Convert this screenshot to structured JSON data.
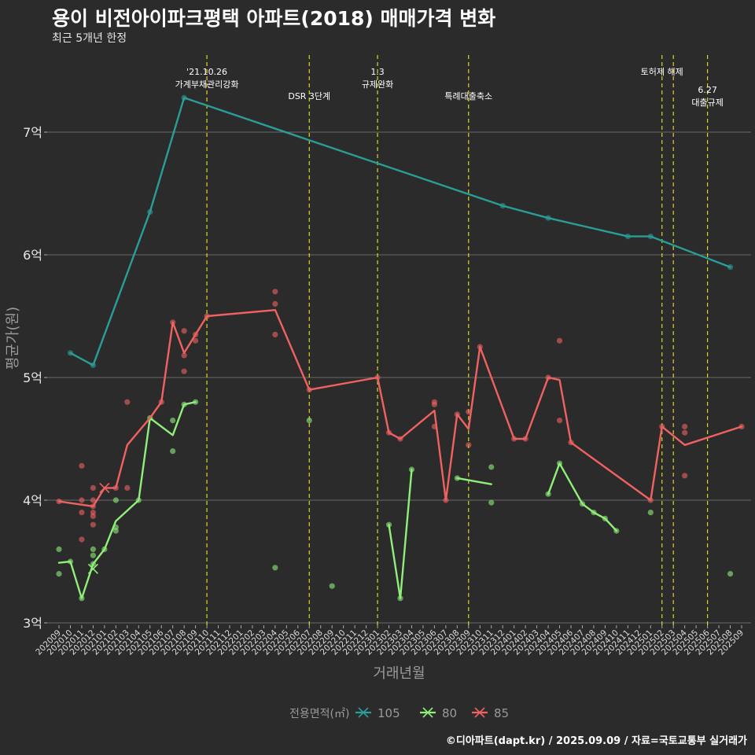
{
  "title": "용이 비전아이파크평택 아파트(2018) 매매가격 변화",
  "subtitle": "최근 5개년 한정",
  "caption": "©디아파트(dapt.kr) / 2025.09.09 / 자료=국토교통부 실거래가",
  "chart_data": {
    "type": "line",
    "xlabel": "거래년월",
    "ylabel": "평균가(원)",
    "ylim": [
      3.0,
      7.85
    ],
    "y_ticks": [
      3,
      4,
      5,
      6,
      7
    ],
    "y_tick_labels": [
      "3억",
      "4억",
      "5억",
      "6억",
      "7억"
    ],
    "grid": true,
    "x_ticks": [
      "202009",
      "202010",
      "202011",
      "202012",
      "202101",
      "202102",
      "202103",
      "202104",
      "202105",
      "202106",
      "202107",
      "202108",
      "202109",
      "202110",
      "202111",
      "202112",
      "202201",
      "202202",
      "202203",
      "202204",
      "202205",
      "202206",
      "202207",
      "202208",
      "202209",
      "202210",
      "202211",
      "202212",
      "202301",
      "202302",
      "202303",
      "202304",
      "202305",
      "202306",
      "202307",
      "202308",
      "202309",
      "202310",
      "202311",
      "202312",
      "202401",
      "202402",
      "202403",
      "202404",
      "202405",
      "202406",
      "202407",
      "202408",
      "202409",
      "202410",
      "202411",
      "202412",
      "202501",
      "202502",
      "202503",
      "202504",
      "202505",
      "202506",
      "202507",
      "202508",
      "202509"
    ],
    "legend": {
      "title": "전용면적(㎡)",
      "position": "bottom"
    },
    "colors": {
      "105": "#2a9d96",
      "80": "#90ee7a",
      "85": "#f06262"
    },
    "series": [
      {
        "name": "105",
        "line": [
          [
            1,
            5.2
          ],
          [
            3,
            5.1
          ],
          [
            8,
            6.35
          ],
          [
            11,
            7.28
          ],
          [
            39,
            6.4
          ],
          [
            43,
            6.3
          ],
          [
            50,
            6.15
          ],
          [
            52,
            6.15
          ],
          [
            59,
            5.9
          ]
        ],
        "points": [
          [
            1,
            5.2
          ],
          [
            3,
            5.1
          ],
          [
            8,
            6.35
          ],
          [
            11,
            7.28
          ],
          [
            39,
            6.4
          ],
          [
            43,
            6.3
          ],
          [
            50,
            6.15
          ],
          [
            52,
            6.15
          ],
          [
            59,
            5.9
          ]
        ],
        "crosses": []
      },
      {
        "name": "80",
        "segments": [
          [
            [
              0,
              3.49
            ],
            [
              1,
              3.5
            ],
            [
              2,
              3.2
            ],
            [
              3,
              3.48
            ],
            [
              4,
              3.6
            ],
            [
              5,
              3.83
            ],
            [
              7,
              4.0
            ],
            [
              8,
              4.67
            ],
            [
              10,
              4.53
            ],
            [
              11,
              4.78
            ],
            [
              12,
              4.8
            ]
          ],
          [
            [
              29,
              3.8
            ],
            [
              30,
              3.2
            ],
            [
              31,
              4.25
            ]
          ],
          [
            [
              35,
              4.18
            ],
            [
              38,
              4.13
            ]
          ],
          [
            [
              43,
              4.05
            ],
            [
              44,
              4.3
            ],
            [
              46,
              3.97
            ],
            [
              47,
              3.9
            ],
            [
              48,
              3.85
            ],
            [
              49,
              3.75
            ]
          ]
        ],
        "points": [
          [
            0,
            3.6
          ],
          [
            0,
            3.4
          ],
          [
            1,
            3.5
          ],
          [
            2,
            3.2
          ],
          [
            3,
            3.6
          ],
          [
            3,
            3.55
          ],
          [
            3,
            3.48
          ],
          [
            4,
            3.6
          ],
          [
            5,
            4.0
          ],
          [
            5,
            3.78
          ],
          [
            5,
            3.75
          ],
          [
            7,
            4.0
          ],
          [
            8,
            4.67
          ],
          [
            10,
            4.65
          ],
          [
            10,
            4.4
          ],
          [
            11,
            4.78
          ],
          [
            12,
            4.8
          ],
          [
            19,
            3.45
          ],
          [
            22,
            4.65
          ],
          [
            24,
            3.3
          ],
          [
            29,
            3.8
          ],
          [
            30,
            3.2
          ],
          [
            31,
            4.25
          ],
          [
            35,
            4.18
          ],
          [
            38,
            4.27
          ],
          [
            38,
            3.98
          ],
          [
            43,
            4.05
          ],
          [
            44,
            4.3
          ],
          [
            46,
            3.97
          ],
          [
            47,
            3.9
          ],
          [
            48,
            3.85
          ],
          [
            49,
            3.75
          ],
          [
            52,
            3.9
          ],
          [
            59,
            3.4
          ]
        ],
        "crosses": [
          [
            3,
            3.44
          ]
        ]
      },
      {
        "name": "85",
        "line": [
          [
            0,
            3.99
          ],
          [
            3,
            3.95
          ],
          [
            4,
            4.1
          ],
          [
            5,
            4.1
          ],
          [
            6,
            4.45
          ],
          [
            8,
            4.67
          ],
          [
            9,
            4.8
          ],
          [
            10,
            5.45
          ],
          [
            11,
            5.2
          ],
          [
            12,
            5.35
          ],
          [
            13,
            5.5
          ],
          [
            19,
            5.55
          ],
          [
            22,
            4.9
          ],
          [
            28,
            5.0
          ],
          [
            29,
            4.55
          ],
          [
            30,
            4.5
          ],
          [
            33,
            4.73
          ],
          [
            34,
            4.0
          ],
          [
            35,
            4.7
          ],
          [
            36,
            4.58
          ],
          [
            37,
            5.25
          ],
          [
            40,
            4.5
          ],
          [
            41,
            4.5
          ],
          [
            43,
            5.0
          ],
          [
            44,
            4.98
          ],
          [
            45,
            4.47
          ],
          [
            52,
            4.0
          ],
          [
            53,
            4.6
          ],
          [
            55,
            4.45
          ],
          [
            60,
            4.6
          ]
        ],
        "points": [
          [
            0,
            3.99
          ],
          [
            2,
            4.28
          ],
          [
            2,
            4.0
          ],
          [
            2,
            3.9
          ],
          [
            2,
            3.68
          ],
          [
            3,
            4.1
          ],
          [
            3,
            4.0
          ],
          [
            3,
            3.95
          ],
          [
            3,
            3.9
          ],
          [
            3,
            3.87
          ],
          [
            3,
            3.8
          ],
          [
            5,
            4.1
          ],
          [
            6,
            4.8
          ],
          [
            6,
            4.1
          ],
          [
            9,
            4.8
          ],
          [
            10,
            5.45
          ],
          [
            11,
            5.38
          ],
          [
            11,
            5.18
          ],
          [
            11,
            5.05
          ],
          [
            12,
            5.35
          ],
          [
            12,
            5.3
          ],
          [
            13,
            5.5
          ],
          [
            19,
            5.7
          ],
          [
            19,
            5.6
          ],
          [
            19,
            5.35
          ],
          [
            22,
            4.9
          ],
          [
            28,
            5.0
          ],
          [
            29,
            4.55
          ],
          [
            30,
            4.5
          ],
          [
            33,
            4.8
          ],
          [
            33,
            4.78
          ],
          [
            33,
            4.6
          ],
          [
            34,
            4.0
          ],
          [
            35,
            4.7
          ],
          [
            36,
            4.72
          ],
          [
            36,
            4.45
          ],
          [
            37,
            5.25
          ],
          [
            40,
            4.5
          ],
          [
            41,
            4.5
          ],
          [
            43,
            5.0
          ],
          [
            44,
            5.3
          ],
          [
            44,
            4.65
          ],
          [
            45,
            4.47
          ],
          [
            52,
            4.0
          ],
          [
            53,
            4.6
          ],
          [
            55,
            4.6
          ],
          [
            55,
            4.55
          ],
          [
            55,
            4.2
          ],
          [
            60,
            4.6
          ]
        ],
        "crosses": [
          [
            4,
            4.1
          ]
        ]
      }
    ],
    "annotations": [
      {
        "x_index": 13,
        "label_lines": [
          "'21.10.26",
          "가계부채관리강화"
        ],
        "level": 1
      },
      {
        "x_index": 22,
        "label_lines": [
          "DSR 3단계"
        ],
        "level": 2
      },
      {
        "x_index": 28,
        "label_lines": [
          "1.3",
          "규제완화"
        ],
        "level": 1
      },
      {
        "x_index": 36,
        "label_lines": [
          "특례대출축소"
        ],
        "level": 2
      },
      {
        "x_index": 53,
        "label_lines": [
          "토허제 해제"
        ],
        "level": 1
      },
      {
        "x_index": 54,
        "label_lines": [],
        "level": 0
      },
      {
        "x_index": 57,
        "label_lines": [
          "6.27",
          "대출규제"
        ],
        "level": 3
      }
    ]
  }
}
